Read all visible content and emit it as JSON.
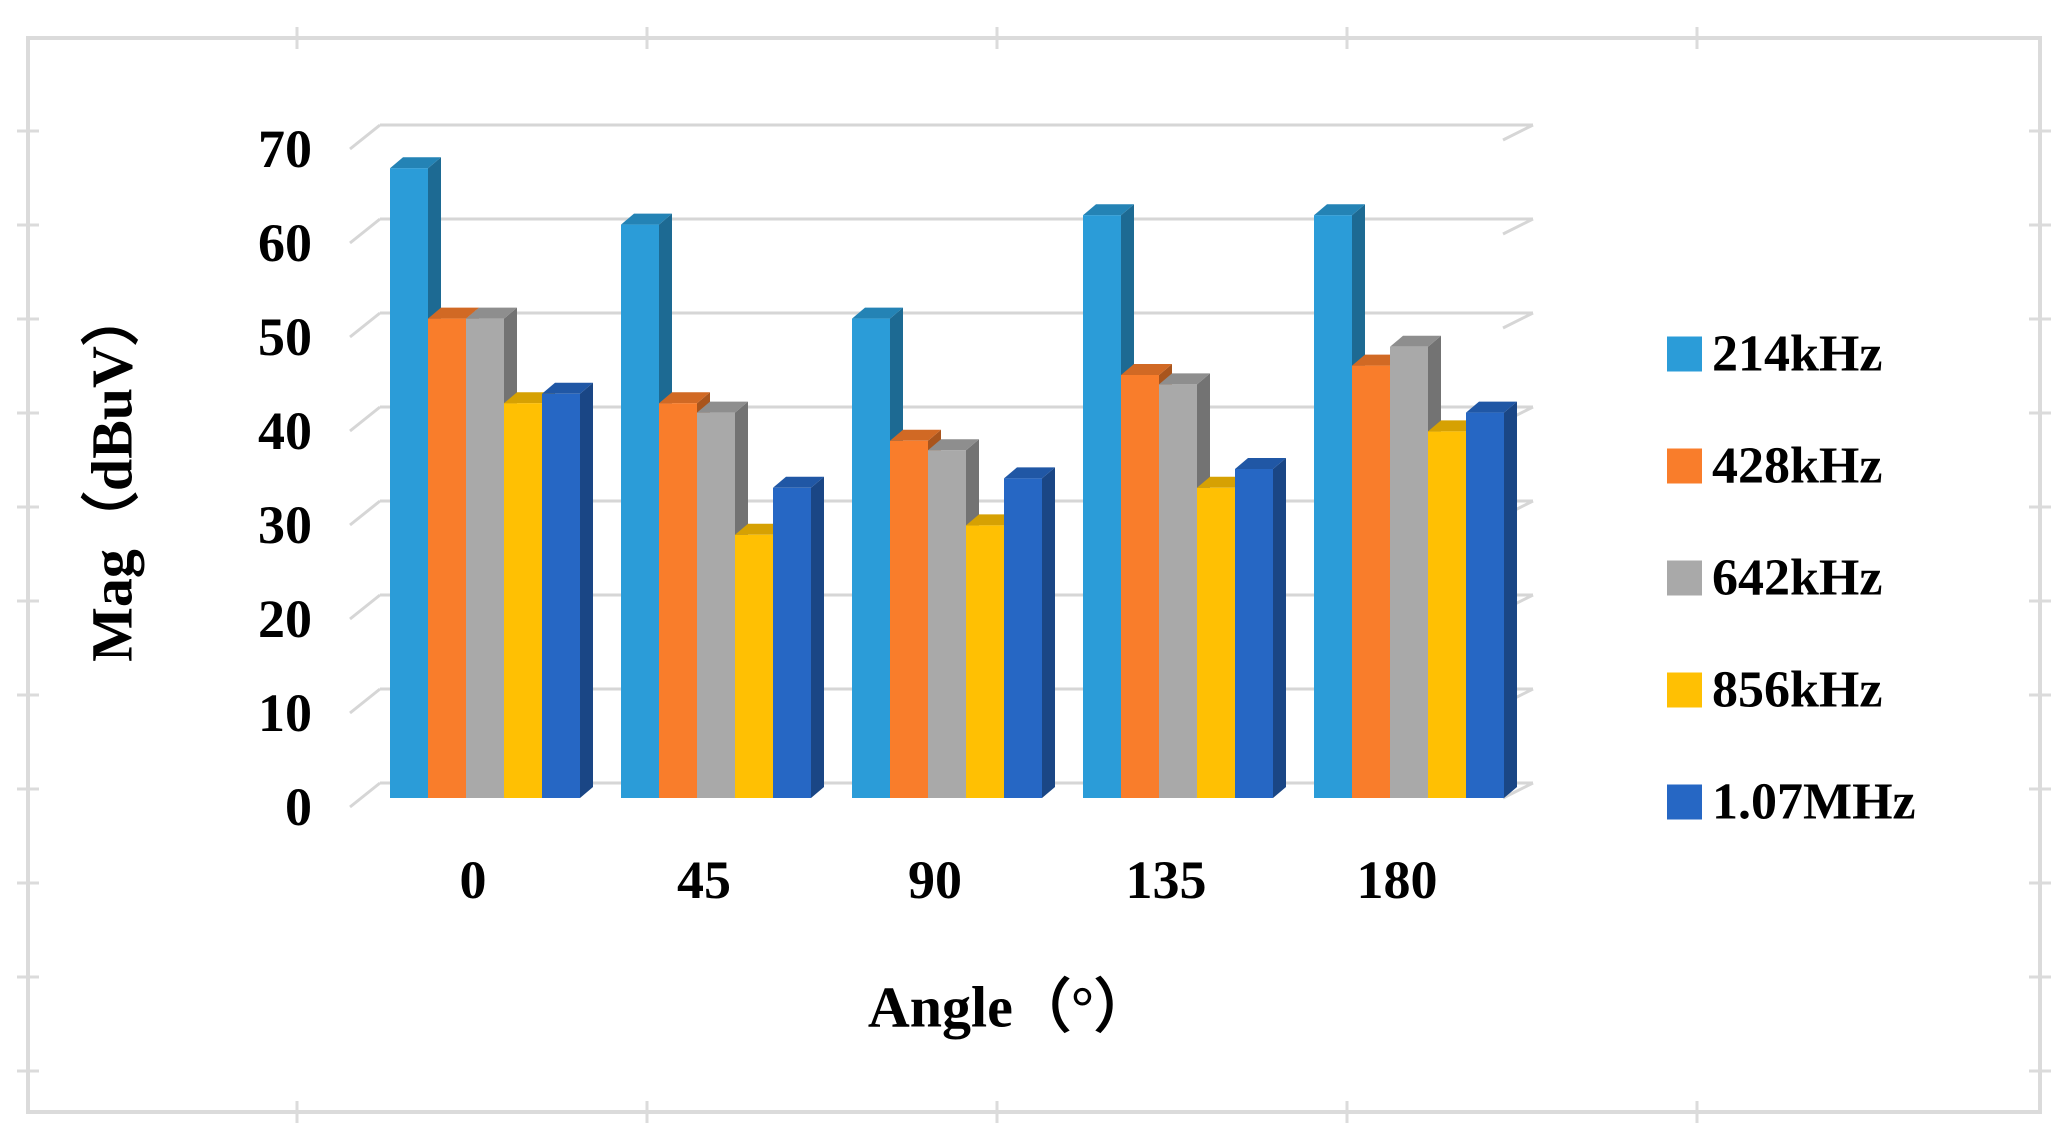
{
  "figure": {
    "background": "#ffffff",
    "frame_color": "#dbdbdb",
    "gridline_color": "#d6d6d6"
  },
  "chart_data": {
    "type": "bar",
    "style": "3d-clustered-column",
    "title": "",
    "xlabel": "Angle（°）",
    "ylabel": "Mag（dBuV）",
    "categories": [
      "0",
      "45",
      "90",
      "135",
      "180"
    ],
    "series": [
      {
        "name": "214kHz",
        "color": "#2b9cd8",
        "values": [
          67,
          61,
          51,
          62,
          62
        ]
      },
      {
        "name": "428kHz",
        "color": "#f97d2b",
        "values": [
          51,
          42,
          38,
          45,
          46
        ]
      },
      {
        "name": "642kHz",
        "color": "#a9a9a9",
        "values": [
          51,
          41,
          37,
          44,
          48
        ]
      },
      {
        "name": "856kHz",
        "color": "#ffc003",
        "values": [
          42,
          28,
          29,
          33,
          39
        ]
      },
      {
        "name": "1.07MHz",
        "color": "#2667c4",
        "values": [
          43,
          33,
          34,
          35,
          41
        ]
      }
    ],
    "y_ticks": [
      0,
      10,
      20,
      30,
      40,
      50,
      60,
      70
    ],
    "ylim": [
      0,
      70
    ],
    "grid": true,
    "legend_position": "right"
  }
}
